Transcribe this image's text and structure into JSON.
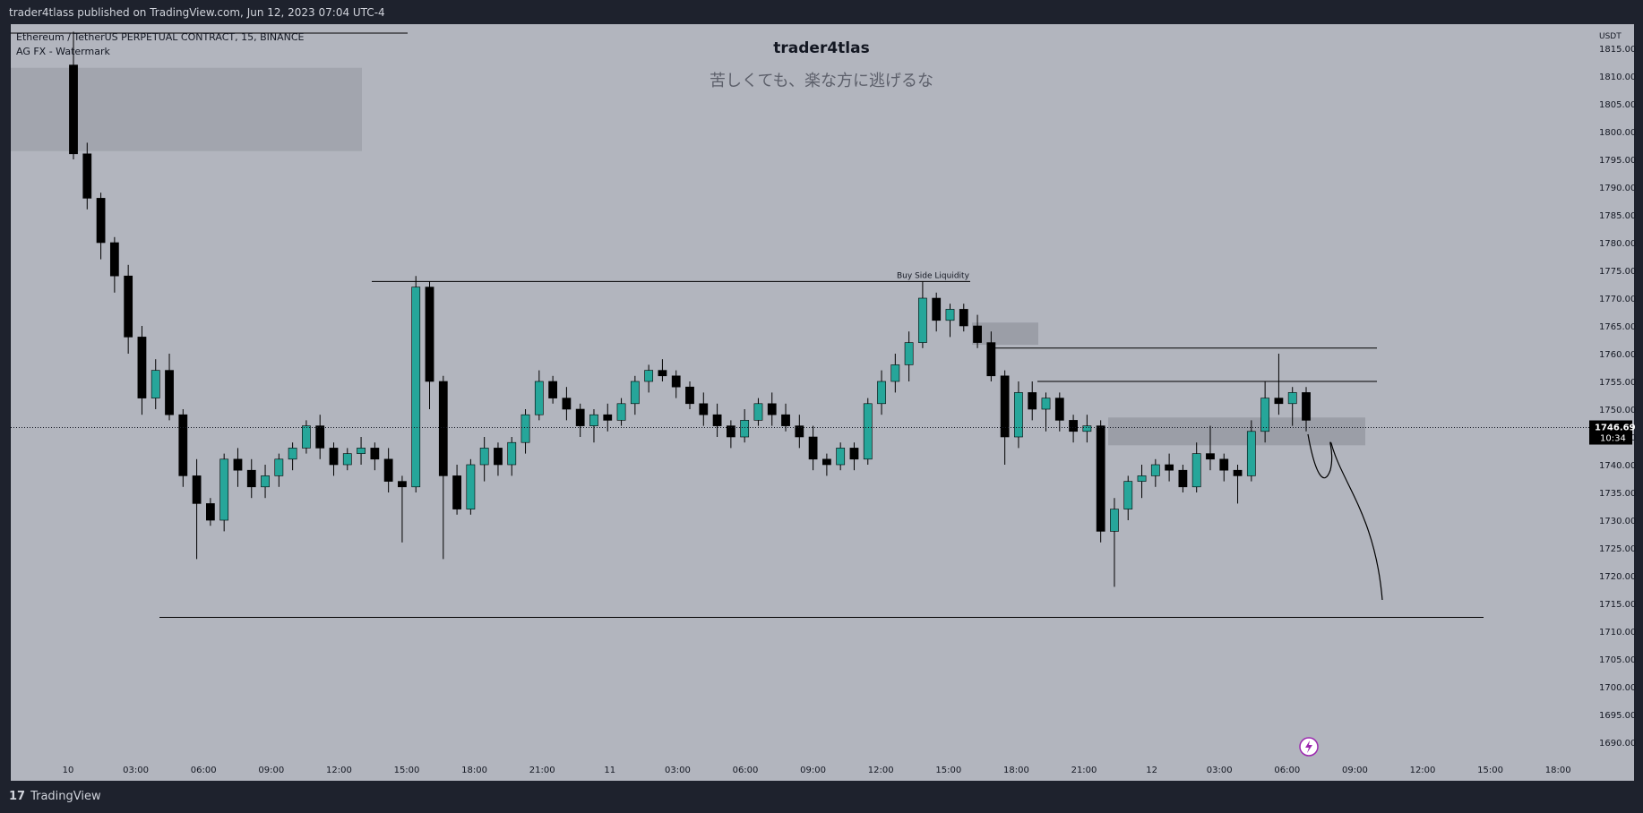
{
  "header": {
    "publish_text": "trader4tlass published on TradingView.com, Jun 12, 2023 07:04 UTC-4"
  },
  "legend": {
    "symbol": "Ethereum / TetherUS PERPETUAL CONTRACT, 15, BINANCE",
    "indicator": "AG FX - Watermark"
  },
  "watermark": {
    "title": "trader4tlas",
    "subtitle": "苦しくても、楽な方に逃げるな"
  },
  "footer": {
    "brand": "TradingView",
    "logo": "17"
  },
  "colors": {
    "background": "#b2b5be",
    "frame": "#1e222d",
    "up_candle": "#26a69a",
    "down_candle": "#000000",
    "zone": "#9598a1"
  },
  "chart_data": {
    "type": "candlestick",
    "currency": "USDT",
    "last_price": "1746.69",
    "countdown": "10:34",
    "ylim": [
      1690,
      1815
    ],
    "y_ticks": [
      "1815.00",
      "1810.00",
      "1805.00",
      "1800.00",
      "1795.00",
      "1790.00",
      "1785.00",
      "1780.00",
      "1775.00",
      "1770.00",
      "1765.00",
      "1760.00",
      "1755.00",
      "1750.00",
      "1745.00",
      "1740.00",
      "1735.00",
      "1730.00",
      "1725.00",
      "1720.00",
      "1715.00",
      "1710.00",
      "1705.00",
      "1700.00",
      "1695.00",
      "1690.00"
    ],
    "x_ticks": [
      "10",
      "03:00",
      "06:00",
      "09:00",
      "12:00",
      "15:00",
      "18:00",
      "21:00",
      "11",
      "03:00",
      "06:00",
      "09:00",
      "12:00",
      "15:00",
      "18:00",
      "21:00",
      "12",
      "03:00",
      "06:00",
      "09:00",
      "12:00",
      "15:00",
      "18:00"
    ],
    "annotations": [
      {
        "text": "Buy Side Liquidity",
        "price": 1773
      },
      {
        "type": "level",
        "price": 1712.5
      },
      {
        "type": "level",
        "price": 1761
      },
      {
        "type": "level",
        "price": 1755
      }
    ],
    "candles": [
      [
        1812,
        1818,
        1795,
        1796
      ],
      [
        1796,
        1798,
        1786,
        1788
      ],
      [
        1788,
        1789,
        1777,
        1780
      ],
      [
        1780,
        1781,
        1771,
        1774
      ],
      [
        1774,
        1776,
        1760,
        1763
      ],
      [
        1763,
        1765,
        1749,
        1752
      ],
      [
        1752,
        1759,
        1750,
        1757
      ],
      [
        1757,
        1760,
        1748,
        1749
      ],
      [
        1749,
        1750,
        1736,
        1738
      ],
      [
        1738,
        1741,
        1723,
        1733
      ],
      [
        1733,
        1734,
        1729,
        1730
      ],
      [
        1730,
        1742,
        1728,
        1741
      ],
      [
        1741,
        1743,
        1736,
        1739
      ],
      [
        1739,
        1741,
        1734,
        1736
      ],
      [
        1736,
        1740,
        1734,
        1738
      ],
      [
        1738,
        1742,
        1736,
        1741
      ],
      [
        1741,
        1744,
        1739,
        1743
      ],
      [
        1743,
        1748,
        1742,
        1747
      ],
      [
        1747,
        1749,
        1741,
        1743
      ],
      [
        1743,
        1744,
        1738,
        1740
      ],
      [
        1740,
        1743,
        1739,
        1742
      ],
      [
        1742,
        1745,
        1740,
        1743
      ],
      [
        1743,
        1744,
        1739,
        1741
      ],
      [
        1741,
        1743,
        1735,
        1737
      ],
      [
        1737,
        1738,
        1726,
        1736
      ],
      [
        1736,
        1774,
        1735,
        1772
      ],
      [
        1772,
        1773,
        1750,
        1755
      ],
      [
        1755,
        1756,
        1723,
        1738
      ],
      [
        1738,
        1740,
        1731,
        1732
      ],
      [
        1732,
        1741,
        1731,
        1740
      ],
      [
        1740,
        1745,
        1737,
        1743
      ],
      [
        1743,
        1744,
        1738,
        1740
      ],
      [
        1740,
        1745,
        1738,
        1744
      ],
      [
        1744,
        1750,
        1742,
        1749
      ],
      [
        1749,
        1757,
        1748,
        1755
      ],
      [
        1755,
        1756,
        1751,
        1752
      ],
      [
        1752,
        1754,
        1748,
        1750
      ],
      [
        1750,
        1751,
        1745,
        1747
      ],
      [
        1747,
        1750,
        1744,
        1749
      ],
      [
        1749,
        1751,
        1746,
        1748
      ],
      [
        1748,
        1752,
        1747,
        1751
      ],
      [
        1751,
        1756,
        1749,
        1755
      ],
      [
        1755,
        1758,
        1753,
        1757
      ],
      [
        1757,
        1759,
        1755,
        1756
      ],
      [
        1756,
        1757,
        1752,
        1754
      ],
      [
        1754,
        1755,
        1750,
        1751
      ],
      [
        1751,
        1753,
        1747,
        1749
      ],
      [
        1749,
        1751,
        1745,
        1747
      ],
      [
        1747,
        1748,
        1743,
        1745
      ],
      [
        1745,
        1750,
        1744,
        1748
      ],
      [
        1748,
        1752,
        1747,
        1751
      ],
      [
        1751,
        1753,
        1747,
        1749
      ],
      [
        1749,
        1751,
        1746,
        1747
      ],
      [
        1747,
        1749,
        1743,
        1745
      ],
      [
        1745,
        1747,
        1739,
        1741
      ],
      [
        1741,
        1742,
        1738,
        1740
      ],
      [
        1740,
        1744,
        1739,
        1743
      ],
      [
        1743,
        1744,
        1739,
        1741
      ],
      [
        1741,
        1752,
        1740,
        1751
      ],
      [
        1751,
        1757,
        1749,
        1755
      ],
      [
        1755,
        1760,
        1753,
        1758
      ],
      [
        1758,
        1764,
        1755,
        1762
      ],
      [
        1762,
        1773,
        1761,
        1770
      ],
      [
        1770,
        1771,
        1764,
        1766
      ],
      [
        1766,
        1769,
        1763,
        1768
      ],
      [
        1768,
        1769,
        1764,
        1765
      ],
      [
        1765,
        1767,
        1761,
        1762
      ],
      [
        1762,
        1764,
        1755,
        1756
      ],
      [
        1756,
        1757,
        1740,
        1745
      ],
      [
        1745,
        1755,
        1743,
        1753
      ],
      [
        1753,
        1755,
        1748,
        1750
      ],
      [
        1750,
        1753,
        1746,
        1752
      ],
      [
        1752,
        1753,
        1746,
        1748
      ],
      [
        1748,
        1749,
        1744,
        1746
      ],
      [
        1746,
        1749,
        1744,
        1747
      ],
      [
        1747,
        1748,
        1726,
        1728
      ],
      [
        1728,
        1734,
        1718,
        1732
      ],
      [
        1732,
        1738,
        1730,
        1737
      ],
      [
        1737,
        1740,
        1734,
        1738
      ],
      [
        1738,
        1741,
        1736,
        1740
      ],
      [
        1740,
        1742,
        1737,
        1739
      ],
      [
        1739,
        1740,
        1735,
        1736
      ],
      [
        1736,
        1744,
        1735,
        1742
      ],
      [
        1742,
        1747,
        1739,
        1741
      ],
      [
        1741,
        1742,
        1737,
        1739
      ],
      [
        1739,
        1740,
        1733,
        1738
      ],
      [
        1738,
        1748,
        1737,
        1746
      ],
      [
        1746,
        1755,
        1744,
        1752
      ],
      [
        1752,
        1760,
        1749,
        1751
      ],
      [
        1751,
        1754,
        1747,
        1753
      ],
      [
        1753,
        1754,
        1746,
        1748
      ]
    ]
  }
}
